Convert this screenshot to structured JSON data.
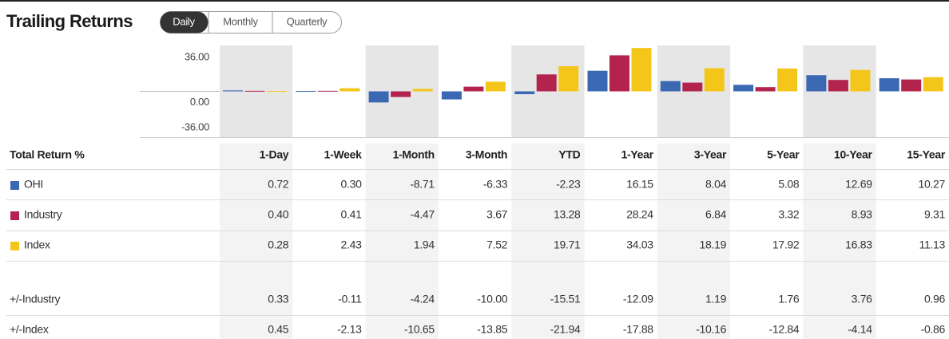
{
  "header": {
    "title": "Trailing Returns",
    "tabs": [
      "Daily",
      "Monthly",
      "Quarterly"
    ]
  },
  "chart": {
    "ylim": [
      -36,
      36
    ],
    "yticks": [
      {
        "value": 36,
        "label": "36.00"
      },
      {
        "value": 0,
        "label": "0.00"
      },
      {
        "value": -36,
        "label": "-36.00"
      }
    ]
  },
  "table": {
    "header": "Total Return %",
    "columns": [
      "1-Day",
      "1-Week",
      "1-Month",
      "3-Month",
      "YTD",
      "1-Year",
      "3-Year",
      "5-Year",
      "10-Year",
      "15-Year"
    ],
    "rows": [
      {
        "name": "OHI",
        "color": "#3a68b2",
        "values": [
          0.72,
          0.3,
          -8.71,
          -6.33,
          -2.23,
          16.15,
          8.04,
          5.08,
          12.69,
          10.27
        ],
        "value_labels": [
          "0.72",
          "0.30",
          "-8.71",
          "-6.33",
          "-2.23",
          "16.15",
          "8.04",
          "5.08",
          "12.69",
          "10.27"
        ]
      },
      {
        "name": "Industry",
        "color": "#b2234e",
        "values": [
          0.4,
          0.41,
          -4.47,
          3.67,
          13.28,
          28.24,
          6.84,
          3.32,
          8.93,
          9.31
        ],
        "value_labels": [
          "0.40",
          "0.41",
          "-4.47",
          "3.67",
          "13.28",
          "28.24",
          "6.84",
          "3.32",
          "8.93",
          "9.31"
        ]
      },
      {
        "name": "Index",
        "color": "#f4c61a",
        "values": [
          0.28,
          2.43,
          1.94,
          7.52,
          19.71,
          34.03,
          18.19,
          17.92,
          16.83,
          11.13
        ],
        "value_labels": [
          "0.28",
          "2.43",
          "1.94",
          "7.52",
          "19.71",
          "34.03",
          "18.19",
          "17.92",
          "16.83",
          "11.13"
        ]
      },
      {
        "name": "+/-Industry",
        "values": [
          0.33,
          -0.11,
          -4.24,
          -10.0,
          -15.51,
          -12.09,
          1.19,
          1.76,
          3.76,
          0.96
        ],
        "value_labels": [
          "0.33",
          "-0.11",
          "-4.24",
          "-10.00",
          "-15.51",
          "-12.09",
          "1.19",
          "1.76",
          "3.76",
          "0.96"
        ]
      },
      {
        "name": "+/-Index",
        "values": [
          0.45,
          -2.13,
          -10.65,
          -13.85,
          -21.94,
          -17.88,
          -10.16,
          -12.84,
          -4.14,
          -0.86
        ],
        "value_labels": [
          "0.45",
          "-2.13",
          "-10.65",
          "-13.85",
          "-21.94",
          "-17.88",
          "-10.16",
          "-12.84",
          "-4.14",
          "-0.86"
        ]
      }
    ]
  }
}
